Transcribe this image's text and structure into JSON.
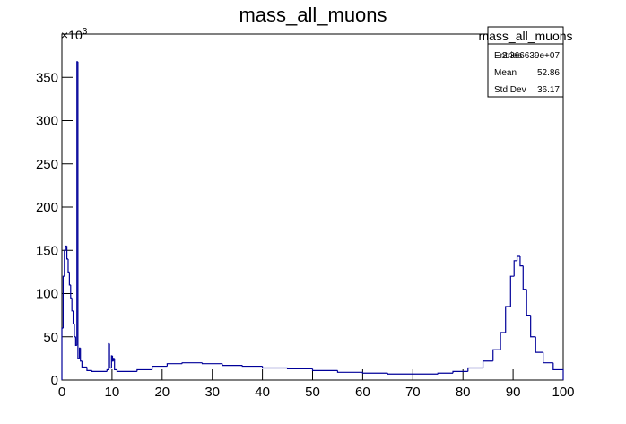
{
  "chart_data": {
    "type": "histogram",
    "title": "mass_all_muons",
    "y_multiplier": "×10",
    "y_multiplier_exponent": "3",
    "bins": [
      0,
      0.25,
      0.5,
      0.75,
      1.0,
      1.25,
      1.5,
      1.75,
      2.0,
      2.25,
      2.5,
      2.75,
      3.0,
      3.2,
      3.5,
      3.7,
      4,
      5,
      6,
      9,
      9.3,
      9.5,
      9.9,
      10.1,
      10.3,
      10.5,
      11,
      15,
      18,
      21,
      24,
      28,
      32,
      36,
      40,
      45,
      50,
      55,
      60,
      65,
      70,
      75,
      78,
      81,
      84,
      86,
      87.5,
      88.5,
      89.5,
      90.2,
      90.8,
      91.4,
      92,
      92.7,
      93.5,
      94.5,
      96,
      98,
      100
    ],
    "counts": [
      60,
      120,
      150,
      155,
      140,
      125,
      110,
      95,
      80,
      65,
      50,
      40,
      368,
      25,
      37,
      22,
      15,
      11,
      10,
      12,
      42,
      14,
      28,
      22,
      25,
      12,
      10,
      12,
      16,
      19,
      20,
      19,
      17,
      16,
      14,
      13,
      11,
      9,
      8,
      7,
      7,
      8,
      10,
      14,
      22,
      35,
      55,
      85,
      120,
      138,
      143,
      132,
      105,
      75,
      50,
      32,
      20,
      12
    ],
    "color": "#000099",
    "xlim": [
      0,
      100
    ],
    "xticks": [
      0,
      10,
      20,
      30,
      40,
      50,
      60,
      70,
      80,
      90,
      100
    ],
    "ylim": [
      0,
      400
    ],
    "yticks": [
      0,
      50,
      100,
      150,
      200,
      250,
      300,
      350
    ],
    "stats_box": {
      "title": "mass_all_muons",
      "rows": [
        {
          "label": "Entries",
          "value": "2.366639e+07"
        },
        {
          "label": "Mean",
          "value": "52.86"
        },
        {
          "label": "Std Dev",
          "value": "36.17"
        }
      ]
    }
  }
}
